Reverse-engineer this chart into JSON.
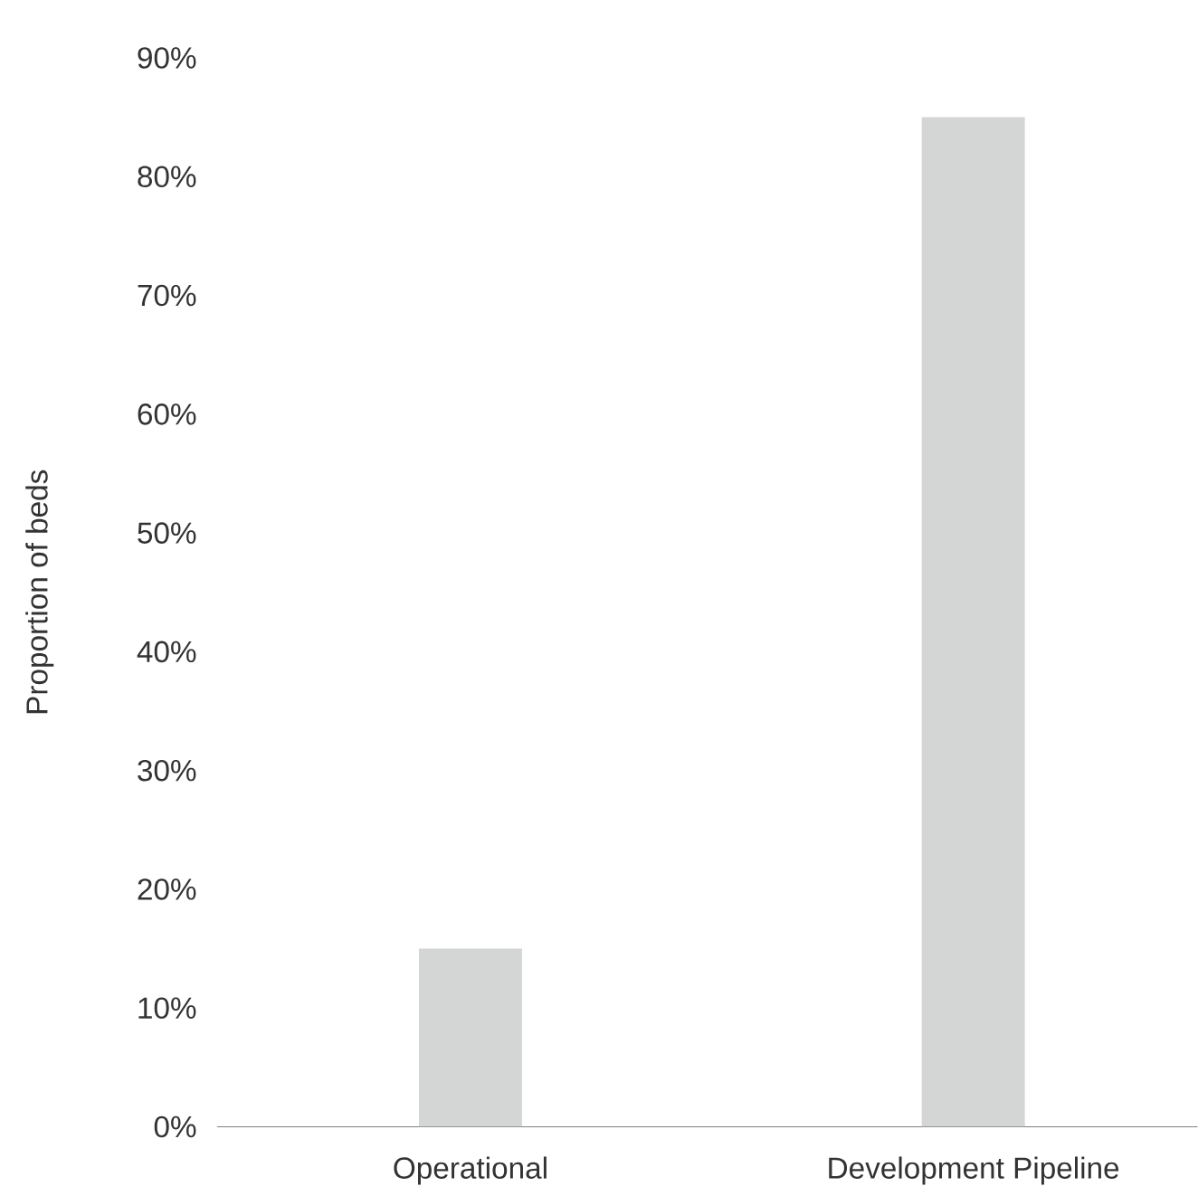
{
  "chart_data": {
    "type": "bar",
    "ylabel": "Proportion of beds",
    "categories": [
      "Operational",
      "Development Pipeline"
    ],
    "values": [
      15,
      85
    ],
    "color": "#d4d6d5",
    "ylim": [
      0,
      90
    ],
    "yticks": [
      {
        "value": 0,
        "label": "0%"
      },
      {
        "value": 10,
        "label": "10%"
      },
      {
        "value": 20,
        "label": "20%"
      },
      {
        "value": 30,
        "label": "30%"
      },
      {
        "value": 40,
        "label": "40%"
      },
      {
        "value": 50,
        "label": "50%"
      },
      {
        "value": 60,
        "label": "60%"
      },
      {
        "value": 70,
        "label": "70%"
      },
      {
        "value": 80,
        "label": "80%"
      },
      {
        "value": 90,
        "label": "90%"
      }
    ]
  }
}
